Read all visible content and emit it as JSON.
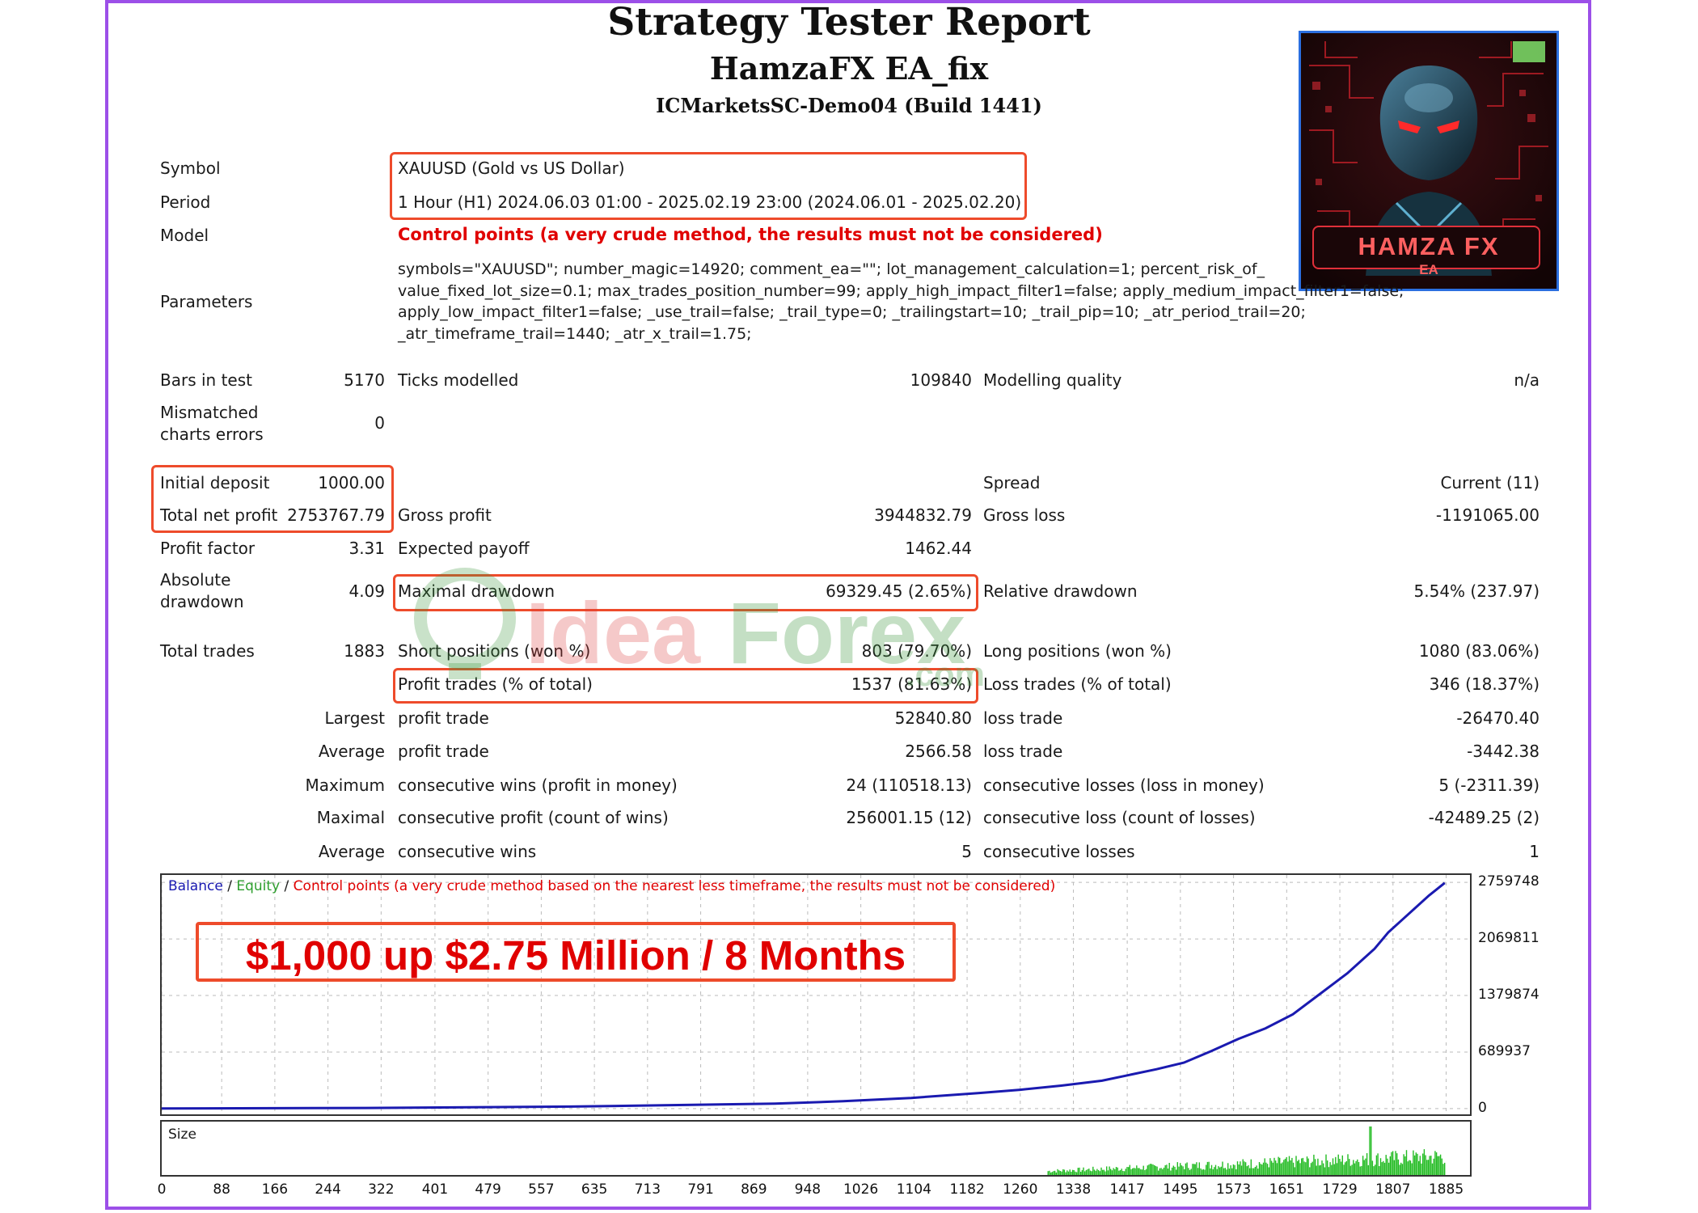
{
  "header": {
    "title": "Strategy Tester Report",
    "ea_name": "HamzaFX EA_fix",
    "server": "ICMarketsSC-Demo04 (Build 1441)"
  },
  "logo": {
    "text": "HAMZA FX",
    "subtext": "EA",
    "icon": "robot-avatar-icon"
  },
  "settings": {
    "symbol_label": "Symbol",
    "symbol_value": "XAUUSD (Gold vs US Dollar)",
    "period_label": "Period",
    "period_value": "1 Hour (H1) 2024.06.03 01:00 - 2025.02.19 23:00 (2024.06.01 - 2025.02.20)",
    "model_label": "Model",
    "model_value": "Control points (a very crude method, the results must not be considered)",
    "parameters_label": "Parameters",
    "parameters_lines": [
      "symbols=\"XAUUSD\"; number_magic=14920; comment_ea=\"\"; lot_management_calculation=1; percent_risk_of_",
      "value_fixed_lot_size=0.1; max_trades_position_number=99; apply_high_impact_filter1=false; apply_medium_impact_filter1=false;",
      "apply_low_impact_filter1=false; _use_trail=false; _trail_type=0; _trailingstart=10; _trail_pip=10; _atr_period_trail=20;",
      "_atr_timeframe_trail=1440; _atr_x_trail=1.75;"
    ]
  },
  "stats": {
    "bars_label": "Bars in test",
    "bars_value": "5170",
    "ticks_label": "Ticks modelled",
    "ticks_value": "109840",
    "quality_label": "Modelling quality",
    "quality_value": "n/a",
    "mismatch_label_1": "Mismatched",
    "mismatch_label_2": "charts errors",
    "mismatch_value": "0",
    "initial_deposit_label": "Initial deposit",
    "initial_deposit_value": "1000.00",
    "spread_label": "Spread",
    "spread_value": "Current (11)",
    "total_net_profit_label": "Total net profit",
    "total_net_profit_value": "2753767.79",
    "gross_profit_label": "Gross profit",
    "gross_profit_value": "3944832.79",
    "gross_loss_label": "Gross loss",
    "gross_loss_value": "-1191065.00",
    "profit_factor_label": "Profit factor",
    "profit_factor_value": "3.31",
    "expected_payoff_label": "Expected payoff",
    "expected_payoff_value": "1462.44",
    "absolute_dd_label_1": "Absolute",
    "absolute_dd_label_2": "drawdown",
    "absolute_dd_value": "4.09",
    "maximal_dd_label": "Maximal drawdown",
    "maximal_dd_value": "69329.45 (2.65%)",
    "relative_dd_label": "Relative drawdown",
    "relative_dd_value": "5.54% (237.97)",
    "total_trades_label": "Total trades",
    "total_trades_value": "1883",
    "short_label": "Short positions (won %)",
    "short_value": "803 (79.70%)",
    "long_label": "Long positions (won %)",
    "long_value": "1080 (83.06%)",
    "profit_trades_label": "Profit trades (% of total)",
    "profit_trades_value": "1537 (81.63%)",
    "loss_trades_label": "Loss trades (% of total)",
    "loss_trades_value": "346 (18.37%)",
    "largest_label": "Largest",
    "largest_profit_label": "profit trade",
    "largest_profit_value": "52840.80",
    "largest_loss_label": "loss trade",
    "largest_loss_value": "-26470.40",
    "average_label": "Average",
    "average_profit_label": "profit trade",
    "average_profit_value": "2566.58",
    "average_loss_label": "loss trade",
    "average_loss_value": "-3442.38",
    "maximum_label": "Maximum",
    "max_cons_wins_label": "consecutive wins (profit in money)",
    "max_cons_wins_value": "24 (110518.13)",
    "max_cons_losses_label": "consecutive losses (loss in money)",
    "max_cons_losses_value": "5 (-2311.39)",
    "maximal_label": "Maximal",
    "maximal_cons_profit_label": "consecutive profit (count of wins)",
    "maximal_cons_profit_value": "256001.15 (12)",
    "maximal_cons_loss_label": "consecutive loss (count of losses)",
    "maximal_cons_loss_value": "-42489.25 (2)",
    "average2_label": "Average",
    "avg_cons_wins_label": "consecutive wins",
    "avg_cons_wins_value": "5",
    "avg_cons_losses_label": "consecutive losses",
    "avg_cons_losses_value": "1"
  },
  "watermark": {
    "text_part1": "Idea",
    "text_part2": "Forex",
    "suffix": ".com"
  },
  "chart_legend": {
    "balance": "Balance",
    "sep1": " / ",
    "equity": "Equity",
    "sep2": " / ",
    "note": "Control points (a very crude method based on the nearest less timeframe, the results must not be considered)"
  },
  "banner_text": "$1,000 up $2.75 Million / 8 Months",
  "size_label": "Size",
  "colors": {
    "balance": "#1a1ab0",
    "equity": "#2e9e2e",
    "note": "#e00000",
    "highlight": "#ee4b2b",
    "frame": "#9c4fe8",
    "size_bars": "#22bb22"
  },
  "chart_data": {
    "type": "line",
    "y_ticks": [
      "2759748",
      "2069811",
      "1379874",
      "689937",
      "0"
    ],
    "y_tick_values": [
      2759748,
      2069811,
      1379874,
      689937,
      0
    ],
    "x_ticks": [
      "0",
      "88",
      "166",
      "244",
      "322",
      "401",
      "479",
      "557",
      "635",
      "713",
      "791",
      "869",
      "948",
      "1026",
      "1104",
      "1182",
      "1260",
      "1338",
      "1417",
      "1495",
      "1573",
      "1651",
      "1729",
      "1807",
      "1885"
    ],
    "x_tick_values": [
      0,
      88,
      166,
      244,
      322,
      401,
      479,
      557,
      635,
      713,
      791,
      869,
      948,
      1026,
      1104,
      1182,
      1260,
      1338,
      1417,
      1495,
      1573,
      1651,
      1729,
      1807,
      1885
    ],
    "xlim": [
      0,
      1920
    ],
    "ylim": [
      -70000,
      2850000
    ],
    "grid": true,
    "series": [
      {
        "name": "Balance",
        "x": [
          0,
          300,
          600,
          900,
          1000,
          1100,
          1200,
          1260,
          1320,
          1380,
          1420,
          1460,
          1500,
          1540,
          1580,
          1620,
          1660,
          1700,
          1740,
          1760,
          1780,
          1800,
          1820,
          1840,
          1860,
          1883
        ],
        "y": [
          1000,
          8000,
          25000,
          60000,
          90000,
          130000,
          190000,
          230000,
          280000,
          340000,
          410000,
          480000,
          560000,
          700000,
          850000,
          980000,
          1150000,
          1400000,
          1650000,
          1800000,
          1950000,
          2150000,
          2300000,
          2450000,
          2600000,
          2753768
        ]
      }
    ],
    "size_bars": {
      "x_range": [
        1300,
        1883
      ],
      "peak_x": 1773,
      "max_relative": 1.0
    }
  }
}
